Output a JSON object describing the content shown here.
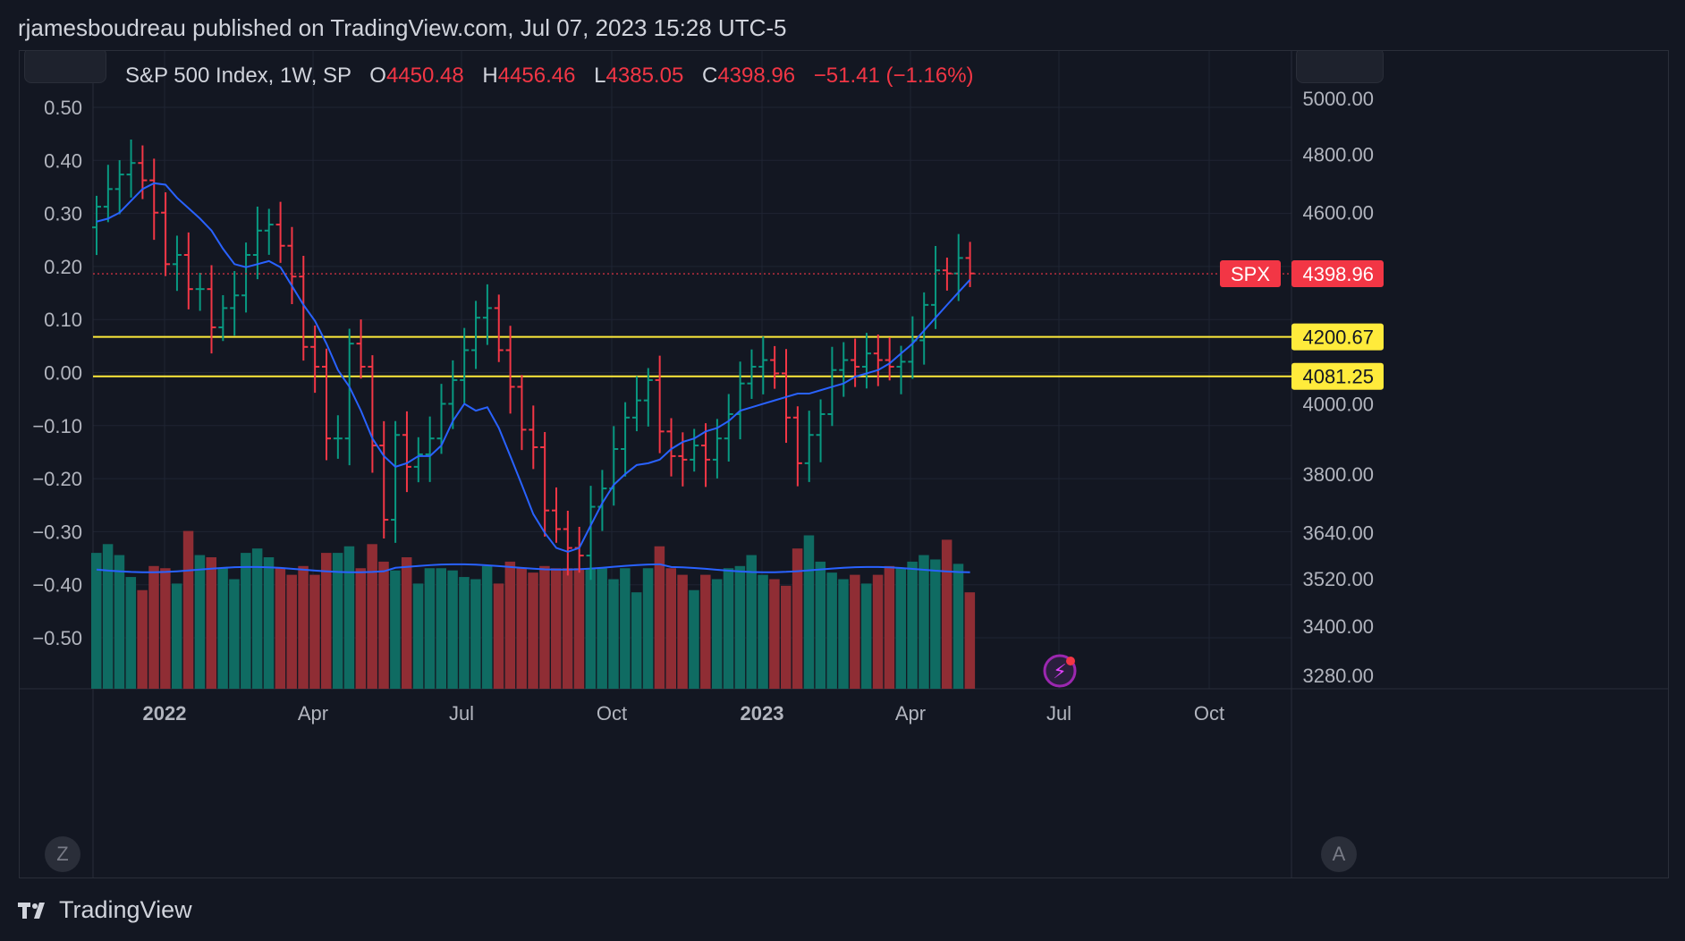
{
  "header": {
    "published_line": "rjamesboudreau published on TradingView.com, Jul 07, 2023 15:28 UTC-5"
  },
  "legend": {
    "symbol": "S&P 500 Index, 1W, SP",
    "open_label": "O",
    "open_value": "4450.48",
    "high_label": "H",
    "high_value": "4456.46",
    "low_label": "L",
    "low_value": "4385.05",
    "close_label": "C",
    "close_value": "4398.96",
    "change": "−51.41 (−1.16%)"
  },
  "buttons": {
    "z_label": "Z",
    "a_label": "A"
  },
  "footer": {
    "brand": "TradingView"
  },
  "colors": {
    "up": "#089981",
    "down": "#f23645",
    "ma": "#2962ff",
    "level": "#ffeb3b",
    "background": "#131722",
    "grid": "#1f2433"
  },
  "chart_data": {
    "type": "ohlc",
    "interval": "1W",
    "x_labels": [
      "2022",
      "Apr",
      "Jul",
      "Oct",
      "2023",
      "Apr",
      "Jul",
      "Oct"
    ],
    "right_axis_ticks": [
      5000.0,
      4800.0,
      4600.0,
      4000.0,
      3800.0,
      3640.0,
      3520.0,
      3400.0,
      3280.0
    ],
    "left_axis_ticks": [
      "0.50",
      "0.40",
      "0.30",
      "0.20",
      "0.10",
      "0.00",
      "−0.10",
      "−0.20",
      "−0.30",
      "−0.40",
      "−0.50"
    ],
    "price_scale": "log",
    "ylim": [
      3250,
      5150
    ],
    "price_tag": {
      "label": "SPX",
      "value": "4398.96"
    },
    "horizontal_levels": [
      {
        "value": "4200.67"
      },
      {
        "value": "4081.25"
      }
    ],
    "closes": [
      4620,
      4680,
      4730,
      4770,
      4710,
      4600,
      4430,
      4460,
      4350,
      4350,
      4230,
      4290,
      4330,
      4460,
      4540,
      4560,
      4490,
      4390,
      4170,
      4110,
      3900,
      3900,
      4180,
      4110,
      3880,
      3675,
      3910,
      3820,
      3855,
      3900,
      4000,
      4070,
      4160,
      4260,
      4290,
      4160,
      4050,
      3925,
      3875,
      3700,
      3650,
      3600,
      3580,
      3710,
      3760,
      3870,
      3960,
      4010,
      4070,
      3920,
      3850,
      3840,
      3880,
      3840,
      3900,
      3970,
      4060,
      4110,
      4130,
      4090,
      3960,
      3830,
      3910,
      3970,
      4100,
      4130,
      4110,
      4150,
      4130,
      4110,
      4125,
      4190,
      4300,
      4410,
      4400,
      4450,
      4400
    ],
    "ma_values": [
      4570,
      4580,
      4600,
      4640,
      4680,
      4700,
      4695,
      4650,
      4615,
      4580,
      4540,
      4480,
      4430,
      4420,
      4430,
      4440,
      4420,
      4360,
      4300,
      4250,
      4180,
      4100,
      4050,
      3980,
      3900,
      3850,
      3820,
      3830,
      3850,
      3850,
      3880,
      3950,
      4000,
      3980,
      3990,
      3930,
      3850,
      3770,
      3690,
      3640,
      3600,
      3590,
      3600,
      3660,
      3720,
      3770,
      3800,
      3825,
      3830,
      3840,
      3870,
      3890,
      3900,
      3920,
      3930,
      3950,
      3980,
      3990,
      4000,
      4010,
      4020,
      4030,
      4030,
      4040,
      4050,
      4060,
      4080,
      4090,
      4100,
      4120,
      4150,
      4180,
      4220,
      4260,
      4300,
      4340,
      4380
    ],
    "volume": [
      0.62,
      0.66,
      0.61,
      0.51,
      0.45,
      0.56,
      0.55,
      0.48,
      0.72,
      0.61,
      0.6,
      0.55,
      0.5,
      0.62,
      0.64,
      0.6,
      0.55,
      0.52,
      0.56,
      0.52,
      0.62,
      0.62,
      0.65,
      0.55,
      0.66,
      0.58,
      0.54,
      0.6,
      0.48,
      0.55,
      0.55,
      0.54,
      0.51,
      0.5,
      0.56,
      0.48,
      0.58,
      0.55,
      0.53,
      0.56,
      0.55,
      0.55,
      0.55,
      0.55,
      0.55,
      0.5,
      0.55,
      0.44,
      0.55,
      0.65,
      0.55,
      0.52,
      0.45,
      0.52,
      0.5,
      0.55,
      0.56,
      0.61,
      0.52,
      0.5,
      0.47,
      0.64,
      0.7,
      0.58,
      0.53,
      0.5,
      0.52,
      0.48,
      0.52,
      0.56,
      0.55,
      0.58,
      0.61,
      0.59,
      0.68,
      0.57,
      0.44
    ],
    "volume_ma": 0.56
  }
}
